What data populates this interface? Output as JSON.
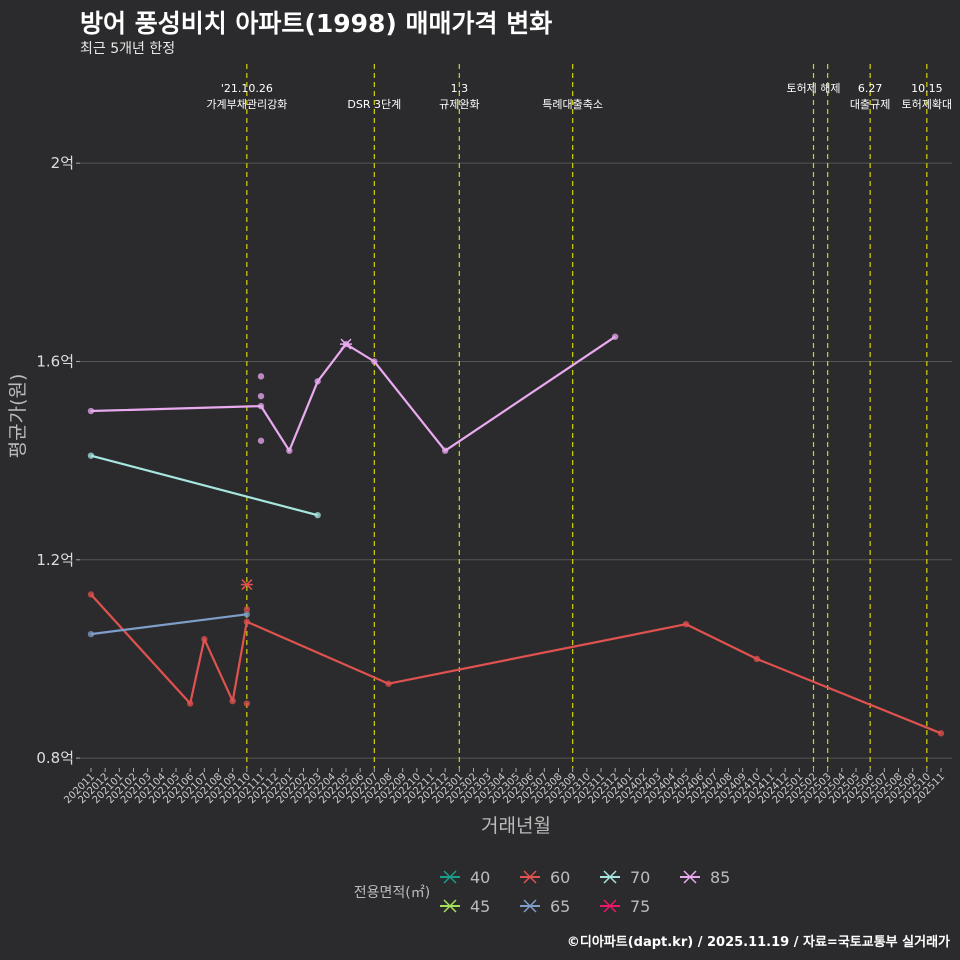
{
  "title": "방어 풍성비치 아파트(1998) 매매가격 변화",
  "subtitle": "최근 5개년 한정",
  "caption": "©디아파트(dapt.kr) / 2025.11.19 / 자료=국토교통부 실거래가",
  "colors": {
    "background": "#2b2b2d",
    "grid": "#555555",
    "event_line": "#d4d40c"
  },
  "chart_data": {
    "type": "line",
    "xlabel": "거래년월",
    "ylabel": "평균가(원)",
    "ylim": [
      0.78,
      2.2
    ],
    "yticks": [
      {
        "value": 0.8,
        "label": "0.8억"
      },
      {
        "value": 1.2,
        "label": "1.2억"
      },
      {
        "value": 1.6,
        "label": "1.6억"
      },
      {
        "value": 2.0,
        "label": "2억"
      }
    ],
    "months": [
      "202011",
      "202012",
      "202101",
      "202102",
      "202103",
      "202104",
      "202105",
      "202106",
      "202107",
      "202108",
      "202109",
      "202110",
      "202111",
      "202112",
      "202201",
      "202202",
      "202203",
      "202204",
      "202205",
      "202206",
      "202207",
      "202208",
      "202209",
      "202210",
      "202211",
      "202212",
      "202301",
      "202302",
      "202303",
      "202304",
      "202305",
      "202306",
      "202307",
      "202308",
      "202309",
      "202310",
      "202311",
      "202312",
      "202401",
      "202402",
      "202403",
      "202404",
      "202405",
      "202406",
      "202407",
      "202408",
      "202409",
      "202410",
      "202411",
      "202412",
      "202501",
      "202502",
      "202503",
      "202504",
      "202505",
      "202506",
      "202507",
      "202508",
      "202509",
      "202510",
      "202511"
    ],
    "events": [
      {
        "month": "202110",
        "label": [
          "'21.10.26",
          "가계부채관리강화"
        ]
      },
      {
        "month": "202207",
        "label": [
          "",
          "DSR 3단계"
        ]
      },
      {
        "month": "202301",
        "label": [
          "1.3",
          "규제완화"
        ]
      },
      {
        "month": "202309",
        "label": [
          "",
          "특례대출축소"
        ]
      },
      {
        "month": "202502",
        "label": [
          "토허제 해제"
        ]
      },
      {
        "month": "202503",
        "label": []
      },
      {
        "month": "202506",
        "label": [
          "6.27",
          "대출규제"
        ]
      },
      {
        "month": "202510",
        "label": [
          "10.15",
          "토허제확대"
        ]
      }
    ],
    "series": [
      {
        "name": "40",
        "color": "#1a9e8a",
        "points": []
      },
      {
        "name": "45",
        "color": "#a6e05a",
        "points": []
      },
      {
        "name": "60",
        "color": "#e0524f",
        "points": [
          [
            "202011",
            1.13
          ],
          [
            "202106",
            0.91
          ],
          [
            "202107",
            1.04
          ],
          [
            "202109",
            0.915
          ],
          [
            "202110",
            1.075
          ],
          [
            "202208",
            0.95
          ],
          [
            "202405",
            1.07
          ],
          [
            "202410",
            1.0
          ],
          [
            "202511",
            0.85
          ]
        ]
      },
      {
        "name": "65",
        "color": "#7f9ec9",
        "points": [
          [
            "202011",
            1.05
          ],
          [
            "202110",
            1.09
          ]
        ]
      },
      {
        "name": "70",
        "color": "#a8e6e0",
        "points": [
          [
            "202011",
            1.41
          ],
          [
            "202203",
            1.29
          ]
        ]
      },
      {
        "name": "75",
        "color": "#e8186b",
        "points": []
      },
      {
        "name": "85",
        "color": "#eaaaf0",
        "points": [
          [
            "202011",
            1.5
          ],
          [
            "202111",
            1.51
          ],
          [
            "202201",
            1.42
          ],
          [
            "202203",
            1.56
          ],
          [
            "202205",
            1.635
          ],
          [
            "202207",
            1.6
          ],
          [
            "202212",
            1.42
          ],
          [
            "202312",
            1.65
          ]
        ]
      }
    ],
    "scatter": [
      {
        "series": "60",
        "month": "202110",
        "value": 0.91
      },
      {
        "series": "60",
        "month": "202110",
        "value": 1.1
      },
      {
        "series": "60",
        "month": "202110",
        "value": 1.15,
        "shape": "x"
      },
      {
        "series": "85",
        "month": "202111",
        "value": 1.44
      },
      {
        "series": "85",
        "month": "202111",
        "value": 1.53
      },
      {
        "series": "85",
        "month": "202111",
        "value": 1.57
      },
      {
        "series": "85",
        "month": "202205",
        "value": 1.635,
        "shape": "x"
      }
    ],
    "legend": {
      "title": "전용면적(㎡)",
      "placement": "bottom",
      "rows": [
        [
          "40",
          "60",
          "70",
          "85"
        ],
        [
          "45",
          "65",
          "75"
        ]
      ]
    }
  }
}
